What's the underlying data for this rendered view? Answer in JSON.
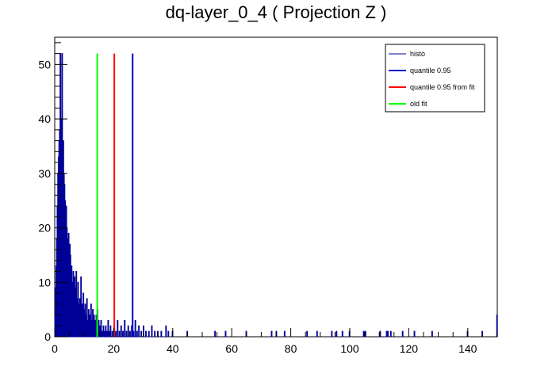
{
  "chart_data": {
    "type": "bar",
    "title": "dq-layer_0_4 ( Projection Z )",
    "xlabel": "",
    "ylabel": "",
    "xlim": [
      0,
      150
    ],
    "ylim": [
      0,
      55
    ],
    "grid": false,
    "x_ticks": [
      0,
      20,
      40,
      60,
      80,
      100,
      120,
      140
    ],
    "y_ticks": [
      0,
      10,
      20,
      30,
      40,
      50
    ],
    "legend_position": "top-right",
    "colors": {
      "histo": "#000099",
      "quantile": "#0000cc",
      "quantile_fit": "#ff0000",
      "old_fit": "#00ff00"
    },
    "series": [
      {
        "name": "histo",
        "bin_width": 0.2,
        "bins": [
          [
            0.2,
            4
          ],
          [
            0.4,
            9
          ],
          [
            0.6,
            13
          ],
          [
            0.8,
            18
          ],
          [
            1.0,
            24
          ],
          [
            1.2,
            30
          ],
          [
            1.4,
            33
          ],
          [
            1.6,
            36
          ],
          [
            1.8,
            38
          ],
          [
            2.0,
            52
          ],
          [
            2.2,
            40
          ],
          [
            2.4,
            35
          ],
          [
            2.6,
            52
          ],
          [
            2.8,
            33
          ],
          [
            3.0,
            36
          ],
          [
            3.2,
            30
          ],
          [
            3.4,
            28
          ],
          [
            3.6,
            25
          ],
          [
            3.8,
            22
          ],
          [
            4.0,
            24
          ],
          [
            4.2,
            20
          ],
          [
            4.4,
            18
          ],
          [
            4.6,
            16
          ],
          [
            4.8,
            19
          ],
          [
            5.0,
            14
          ],
          [
            5.2,
            17
          ],
          [
            5.4,
            15
          ],
          [
            5.6,
            12
          ],
          [
            5.8,
            13
          ],
          [
            6.0,
            10
          ],
          [
            6.2,
            8
          ],
          [
            6.4,
            12
          ],
          [
            6.6,
            6
          ],
          [
            6.8,
            11
          ],
          [
            7.0,
            9
          ],
          [
            7.2,
            5
          ],
          [
            7.4,
            12
          ],
          [
            7.6,
            7
          ],
          [
            7.8,
            4
          ],
          [
            8.0,
            10
          ],
          [
            8.2,
            6
          ],
          [
            8.4,
            3
          ],
          [
            8.6,
            7
          ],
          [
            8.8,
            5
          ],
          [
            9.0,
            11
          ],
          [
            9.2,
            2
          ],
          [
            9.4,
            6
          ],
          [
            9.6,
            4
          ],
          [
            9.8,
            8
          ],
          [
            10.0,
            5
          ],
          [
            10.2,
            3
          ],
          [
            10.4,
            6
          ],
          [
            10.6,
            2
          ],
          [
            10.8,
            4
          ],
          [
            11.0,
            7
          ],
          [
            11.2,
            3
          ],
          [
            11.4,
            1
          ],
          [
            11.6,
            5
          ],
          [
            11.8,
            3
          ],
          [
            12.0,
            4
          ],
          [
            12.2,
            2
          ],
          [
            12.4,
            6
          ],
          [
            12.6,
            1
          ],
          [
            12.8,
            3
          ],
          [
            13.0,
            5
          ],
          [
            13.2,
            2
          ],
          [
            13.4,
            4
          ],
          [
            13.6,
            1
          ],
          [
            13.8,
            3
          ],
          [
            14.0,
            2
          ],
          [
            14.2,
            4
          ],
          [
            14.4,
            1
          ],
          [
            14.6,
            5
          ],
          [
            14.8,
            2
          ],
          [
            15.0,
            3
          ],
          [
            15.2,
            1
          ],
          [
            15.4,
            2
          ],
          [
            15.8,
            3
          ],
          [
            16.2,
            1
          ],
          [
            16.6,
            2
          ],
          [
            17.0,
            1
          ],
          [
            17.4,
            2
          ],
          [
            17.8,
            1
          ],
          [
            18.2,
            3
          ],
          [
            18.6,
            1
          ],
          [
            19.0,
            2
          ],
          [
            19.6,
            1
          ],
          [
            20.2,
            2
          ],
          [
            20.8,
            1
          ],
          [
            21.4,
            3
          ],
          [
            22.0,
            1
          ],
          [
            22.6,
            2
          ],
          [
            23.2,
            1
          ],
          [
            23.8,
            3
          ],
          [
            24.4,
            1
          ],
          [
            25.0,
            2
          ],
          [
            25.6,
            1
          ],
          [
            26.2,
            2
          ],
          [
            26.8,
            1
          ],
          [
            27.4,
            3
          ],
          [
            28.0,
            1
          ],
          [
            28.6,
            2
          ],
          [
            29.4,
            1
          ],
          [
            30.2,
            2
          ],
          [
            31.0,
            1
          ],
          [
            32.0,
            1
          ],
          [
            33.0,
            2
          ],
          [
            34.0,
            1
          ],
          [
            35.0,
            1
          ],
          [
            36.2,
            1
          ],
          [
            37.8,
            2
          ],
          [
            38.6,
            1
          ],
          [
            40.0,
            1
          ],
          [
            45.0,
            1
          ],
          [
            54.4,
            1
          ],
          [
            58.0,
            1
          ],
          [
            65.0,
            1
          ],
          [
            73.6,
            1
          ],
          [
            75.2,
            1
          ],
          [
            78.0,
            1
          ],
          [
            85.6,
            1
          ],
          [
            89.0,
            1
          ],
          [
            94.0,
            1
          ],
          [
            95.6,
            1
          ],
          [
            97.6,
            1
          ],
          [
            100.0,
            1
          ],
          [
            104.8,
            1
          ],
          [
            105.4,
            1
          ],
          [
            110.4,
            1
          ],
          [
            112.6,
            1
          ],
          [
            113.0,
            1
          ],
          [
            114.0,
            1
          ],
          [
            118.0,
            1
          ],
          [
            122.0,
            1
          ],
          [
            128.0,
            1
          ],
          [
            140.0,
            1
          ],
          [
            145.0,
            1
          ],
          [
            150.0,
            4
          ]
        ]
      }
    ],
    "vertical_lines": [
      {
        "name": "quantile 0.95",
        "x": 26.4,
        "ymax": 52,
        "color": "#0000cc"
      },
      {
        "name": "quantile 0.95 from fit",
        "x": 20.2,
        "ymax": 52,
        "color": "#ff0000"
      },
      {
        "name": "old fit",
        "x": 14.4,
        "ymax": 52,
        "color": "#00ff00"
      }
    ],
    "legend": [
      {
        "label": "histo",
        "color": "#000099",
        "width": 1
      },
      {
        "label": "quantile 0.95",
        "color": "#0000cc",
        "width": 2
      },
      {
        "label": "quantile 0.95 from fit",
        "color": "#ff0000",
        "width": 2
      },
      {
        "label": "old fit",
        "color": "#00ff00",
        "width": 2
      }
    ]
  }
}
